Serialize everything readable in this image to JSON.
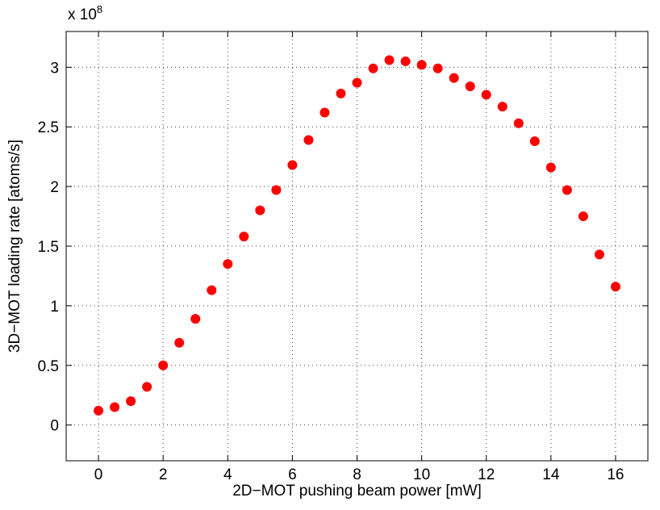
{
  "chart_data": {
    "type": "scatter",
    "title": "",
    "xlabel": "2D−MOT pushing beam power [mW]",
    "ylabel": "3D−MOT loading rate [atoms/s]",
    "y_exponent_label": {
      "base": "x 10",
      "power": "8"
    },
    "xlim": [
      -1,
      17
    ],
    "ylim": [
      -0.3,
      3.3
    ],
    "grid": true,
    "marker_color": "#ff0000",
    "xticks": [
      {
        "value": 0,
        "label": "0"
      },
      {
        "value": 2,
        "label": "2"
      },
      {
        "value": 4,
        "label": "4"
      },
      {
        "value": 6,
        "label": "6"
      },
      {
        "value": 8,
        "label": "8"
      },
      {
        "value": 10,
        "label": "10"
      },
      {
        "value": 12,
        "label": "12"
      },
      {
        "value": 14,
        "label": "14"
      },
      {
        "value": 16,
        "label": "16"
      }
    ],
    "yticks": [
      {
        "value": 0,
        "label": "0"
      },
      {
        "value": 0.5,
        "label": "0.5"
      },
      {
        "value": 1,
        "label": "1"
      },
      {
        "value": 1.5,
        "label": "1.5"
      },
      {
        "value": 2,
        "label": "2"
      },
      {
        "value": 2.5,
        "label": "2.5"
      },
      {
        "value": 3,
        "label": "3"
      }
    ],
    "x": [
      0,
      0.5,
      1,
      1.5,
      2,
      2.5,
      3,
      3.5,
      4,
      4.5,
      5,
      5.5,
      6,
      6.5,
      7,
      7.5,
      8,
      8.5,
      9,
      9.5,
      10,
      10.5,
      11,
      11.5,
      12,
      12.5,
      13,
      13.5,
      14,
      14.5,
      15,
      15.5,
      16
    ],
    "y": [
      0.12,
      0.15,
      0.2,
      0.32,
      0.5,
      0.69,
      0.89,
      1.13,
      1.35,
      1.58,
      1.8,
      1.97,
      2.18,
      2.39,
      2.62,
      2.78,
      2.87,
      2.99,
      3.06,
      3.05,
      3.02,
      2.99,
      2.91,
      2.84,
      2.77,
      2.67,
      2.53,
      2.38,
      2.16,
      1.97,
      1.75,
      1.43,
      1.16
    ]
  }
}
